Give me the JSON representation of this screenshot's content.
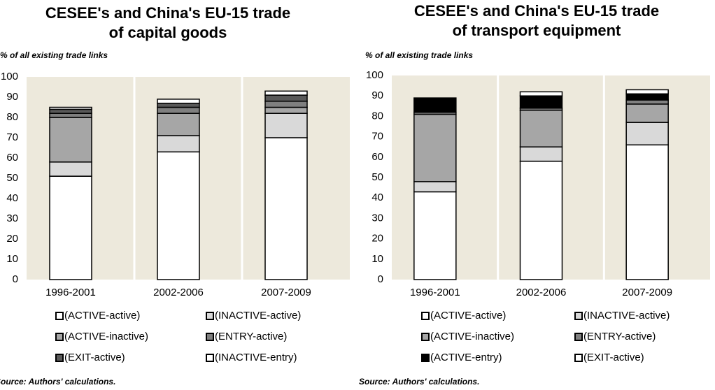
{
  "chart_data": [
    {
      "type": "stacked_bar",
      "title": [
        "CESEE's and China's EU-15 trade",
        "of capital goods"
      ],
      "y_label": "% of all existing trade links",
      "source": "Source: Authors' calculations.",
      "categories": [
        "1996-2001",
        "2002-2006",
        "2007-2009"
      ],
      "series": [
        {
          "name": "(ACTIVE-active)",
          "color": "#ffffff",
          "values": [
            51,
            63,
            70
          ]
        },
        {
          "name": "(INACTIVE-active)",
          "color": "#d9d9d9",
          "values": [
            7,
            8,
            12
          ]
        },
        {
          "name": "(ACTIVE-inactive)",
          "color": "#a6a6a6",
          "values": [
            22,
            11,
            3
          ]
        },
        {
          "name": "(ENTRY-active)",
          "color": "#7f7f7f",
          "values": [
            2,
            3,
            3
          ]
        },
        {
          "name": "(EXIT-active)",
          "color": "#595959",
          "values": [
            2,
            2,
            3
          ]
        },
        {
          "name": "(INACTIVE-entry)",
          "color": "#ffffff",
          "values": [
            1,
            2,
            2
          ]
        }
      ],
      "ylim": [
        0,
        100
      ],
      "yticks": [
        0,
        10,
        20,
        30,
        40,
        50,
        60,
        70,
        80,
        90,
        100
      ]
    },
    {
      "type": "stacked_bar",
      "title": [
        "CESEE's and China's EU-15 trade",
        "of transport equipment"
      ],
      "y_label": "% of all existing trade links",
      "source": "Source: Authors' calculations.",
      "categories": [
        "1996-2001",
        "2002-2006",
        "2007-2009"
      ],
      "series": [
        {
          "name": "(ACTIVE-active)",
          "color": "#ffffff",
          "values": [
            43,
            58,
            66
          ]
        },
        {
          "name": "(INACTIVE-active)",
          "color": "#d9d9d9",
          "values": [
            5,
            7,
            11
          ]
        },
        {
          "name": "(ACTIVE-inactive)",
          "color": "#a6a6a6",
          "values": [
            33,
            18,
            9
          ]
        },
        {
          "name": "(ENTRY-active)",
          "color": "#808080",
          "values": [
            1,
            1,
            2
          ]
        },
        {
          "name": "(ACTIVE-entry)",
          "color": "#000000",
          "values": [
            7,
            6,
            3
          ]
        },
        {
          "name": "(EXIT-active)",
          "color": "#ffffff",
          "values": [
            0,
            2,
            2
          ]
        }
      ],
      "ylim": [
        0,
        100
      ],
      "yticks": [
        0,
        10,
        20,
        30,
        40,
        50,
        60,
        70,
        80,
        90,
        100
      ]
    }
  ]
}
